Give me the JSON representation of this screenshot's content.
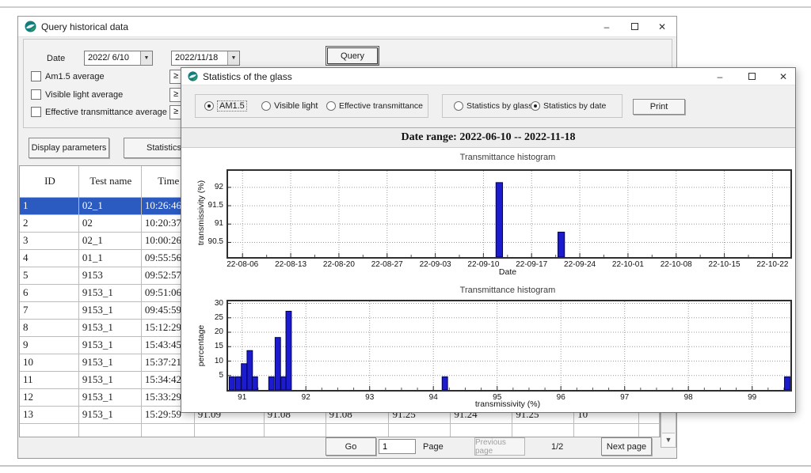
{
  "query_window": {
    "title": "Query historical data",
    "date_label": "Date",
    "date_from": "2022/ 6/10",
    "date_to": "2022/11/18",
    "query_button": "Query",
    "checkboxes": [
      {
        "label": "Am1.5 average"
      },
      {
        "label": "Visible light average"
      },
      {
        "label": "Effective transmittance average"
      }
    ],
    "ge_symbol": "≥",
    "display_params_button": "Display parameters",
    "statistics_button": "Statistics",
    "table": {
      "headers": [
        "ID",
        "Test name",
        "Time",
        "",
        "",
        "",
        "",
        "",
        "",
        "",
        ""
      ],
      "selected_row_index": 0,
      "rows": [
        [
          "1",
          "02_1",
          "10:26:46",
          "",
          "",
          "",
          "",
          "",
          "",
          "",
          ""
        ],
        [
          "2",
          "02",
          "10:20:37",
          "",
          "",
          "",
          "",
          "",
          "",
          "",
          ""
        ],
        [
          "3",
          "02_1",
          "10:00:26",
          "",
          "",
          "",
          "",
          "",
          "",
          "",
          ""
        ],
        [
          "4",
          "01_1",
          "09:55:56",
          "",
          "",
          "",
          "",
          "",
          "",
          "",
          ""
        ],
        [
          "5",
          "9153",
          "09:52:57",
          "",
          "",
          "",
          "",
          "",
          "",
          "",
          ""
        ],
        [
          "6",
          "9153_1",
          "09:51:06",
          "",
          "",
          "",
          "",
          "",
          "",
          "",
          ""
        ],
        [
          "7",
          "9153_1",
          "09:45:59",
          "",
          "",
          "",
          "",
          "",
          "",
          "",
          ""
        ],
        [
          "8",
          "9153_1",
          "15:12:29",
          "",
          "",
          "",
          "",
          "",
          "",
          "",
          ""
        ],
        [
          "9",
          "9153_1",
          "15:43:45",
          "",
          "",
          "",
          "",
          "",
          "",
          "",
          ""
        ],
        [
          "10",
          "9153_1",
          "15:37:21",
          "",
          "",
          "",
          "",
          "",
          "",
          "",
          ""
        ],
        [
          "11",
          "9153_1",
          "15:34:42",
          "",
          "",
          "",
          "",
          "",
          "",
          "",
          ""
        ],
        [
          "12",
          "9153_1",
          "15:33:29",
          "",
          "",
          "",
          "",
          "",
          "",
          "",
          ""
        ],
        [
          "13",
          "9153_1",
          "15:29:59",
          "91.09",
          "91.08",
          "91.08",
          "91.25",
          "91.24",
          "91.25",
          "10",
          ""
        ],
        [
          "",
          "",
          "",
          "",
          "",
          "",
          "",
          "",
          "",
          "",
          ""
        ]
      ]
    },
    "pagination": {
      "go": "Go",
      "page_value": "1",
      "page_label": "Page",
      "prev": "Previous page",
      "position": "1/2",
      "next": "Next page"
    }
  },
  "stats_window": {
    "title": "Statistics of the glass",
    "mode_radios": [
      {
        "label": "AM1.5",
        "selected": true
      },
      {
        "label": "Visible light",
        "selected": false
      },
      {
        "label": "Effective transmittance",
        "selected": false
      }
    ],
    "stat_radios": [
      {
        "label": "Statistics by glass",
        "selected": false
      },
      {
        "label": "Statistics by date",
        "selected": true
      }
    ],
    "print_button": "Print",
    "date_range": "Date range: 2022-06-10 -- 2022-11-18"
  },
  "chart_data": [
    {
      "type": "bar",
      "title": "Transmittance histogram",
      "xlabel": "Date",
      "ylabel": "transmissivity (%)",
      "x_tick_labels": [
        "22-08-06",
        "22-08-13",
        "22-08-20",
        "22-08-27",
        "22-09-03",
        "22-09-10",
        "22-09-17",
        "22-09-24",
        "22-10-01",
        "22-10-08",
        "22-10-15",
        "22-10-22"
      ],
      "x_tick_positions": [
        0,
        7,
        14,
        21,
        28,
        35,
        42,
        49,
        56,
        63,
        70,
        77
      ],
      "xlim": [
        -2.1,
        79.6
      ],
      "x_minor_step": 3.5,
      "y_ticks": [
        90.5,
        91,
        91.5,
        92
      ],
      "ylim": [
        90.1,
        92.45
      ],
      "baseline": 90.1,
      "bar_width_x": 0.95,
      "bars": [
        {
          "date": "22-09-12",
          "x": 37.3,
          "value": 92.13
        },
        {
          "date": "22-09-21",
          "x": 46.3,
          "value": 90.78
        }
      ],
      "grid": "dotted",
      "legend": "none"
    },
    {
      "type": "bar",
      "title": "Transmittance histogram",
      "xlabel": "transmissivity (%)",
      "ylabel": "percentage",
      "x_tick_labels": [
        "91",
        "92",
        "93",
        "94",
        "95",
        "96",
        "97",
        "98",
        "99"
      ],
      "x_tick_positions": [
        91,
        92,
        93,
        94,
        95,
        96,
        97,
        98,
        99
      ],
      "xlim": [
        90.78,
        99.6
      ],
      "x_minor_step": 0.25,
      "y_ticks": [
        5,
        10,
        15,
        20,
        25,
        30
      ],
      "ylim": [
        0,
        30.7
      ],
      "baseline": 0,
      "bar_width_x": 0.085,
      "bars": [
        {
          "x": 90.84,
          "value": 4.55
        },
        {
          "x": 90.94,
          "value": 4.55
        },
        {
          "x": 91.03,
          "value": 9.09
        },
        {
          "x": 91.12,
          "value": 13.64
        },
        {
          "x": 91.2,
          "value": 4.55
        },
        {
          "x": 91.46,
          "value": 4.55
        },
        {
          "x": 91.56,
          "value": 18.18
        },
        {
          "x": 91.65,
          "value": 4.55
        },
        {
          "x": 91.73,
          "value": 27.27
        },
        {
          "x": 94.18,
          "value": 4.55
        },
        {
          "x": 99.55,
          "value": 4.55
        }
      ],
      "grid": "dotted",
      "legend": "none"
    }
  ],
  "colors": {
    "bar_fill": "#1c1cce",
    "bar_stroke": "#000055",
    "grid_line": "#9c9c9c",
    "selection": "#2b5ac0",
    "icon_teal": "#157c7c"
  }
}
